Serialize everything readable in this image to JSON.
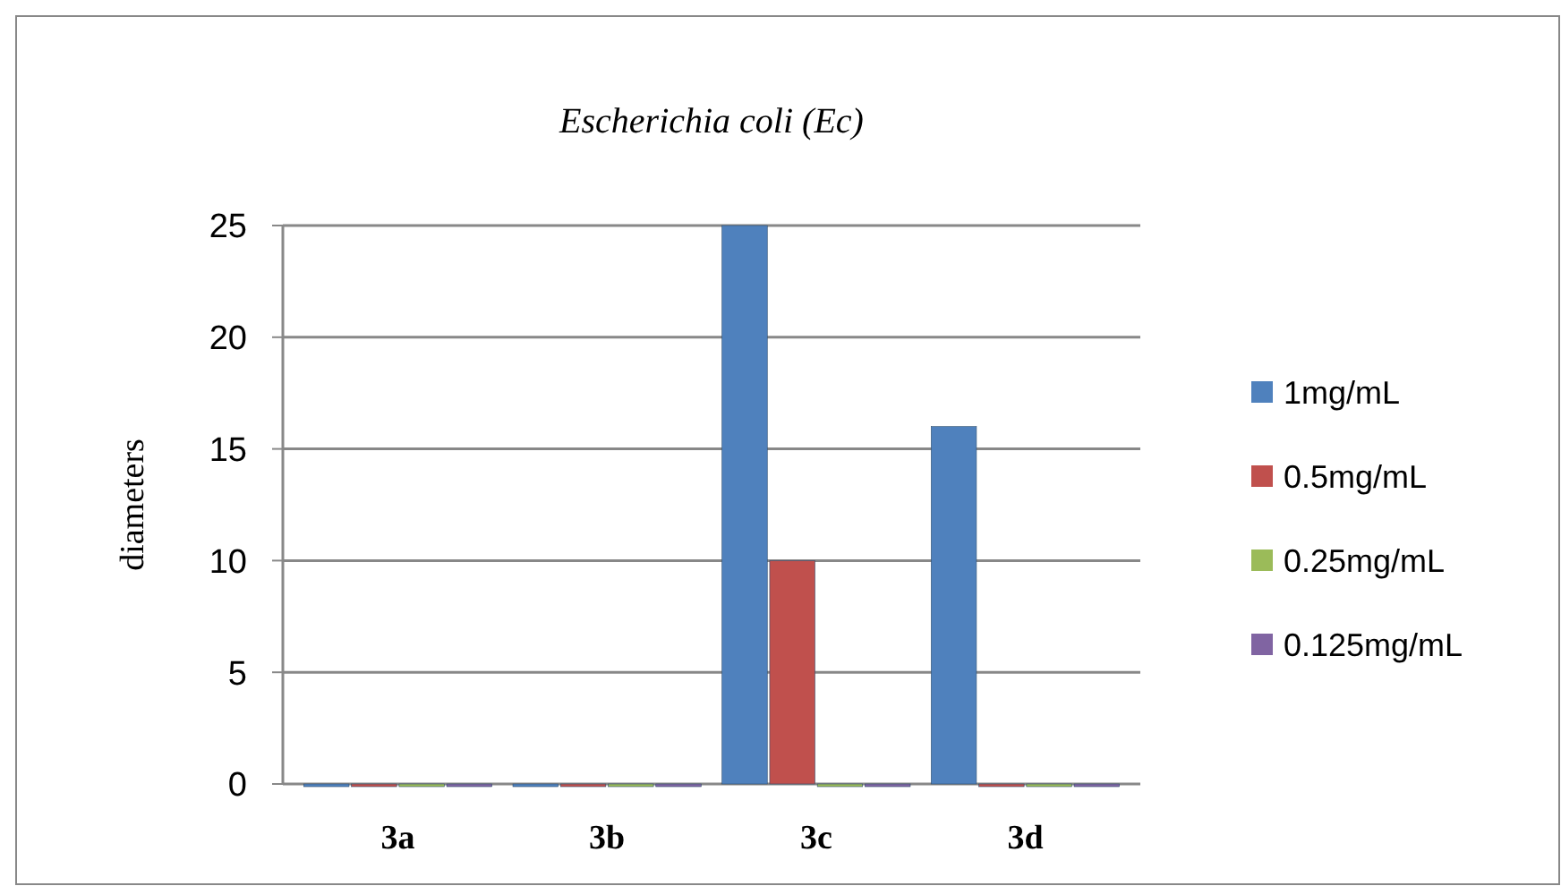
{
  "chart_data": {
    "type": "bar",
    "title": "Escherichia coli (Ec)",
    "ylabel": "diameters",
    "categories": [
      "3a",
      "3b",
      "3c",
      "3d"
    ],
    "series": [
      {
        "name": "1mg/mL",
        "color": "#4f81bd",
        "values": [
          0,
          0,
          25,
          16
        ]
      },
      {
        "name": "0.5mg/mL",
        "color": "#c0504d",
        "values": [
          0,
          0,
          10,
          0
        ]
      },
      {
        "name": "0.25mg/mL",
        "color": "#9bbb59",
        "values": [
          0,
          0,
          0,
          0
        ]
      },
      {
        "name": "0.125mg/mL",
        "color": "#8064a2",
        "values": [
          0,
          0,
          0,
          0
        ]
      }
    ],
    "ylim": [
      0,
      25
    ],
    "yticks": [
      0,
      5,
      10,
      15,
      20,
      25
    ],
    "grid": "y",
    "legend": "right"
  }
}
